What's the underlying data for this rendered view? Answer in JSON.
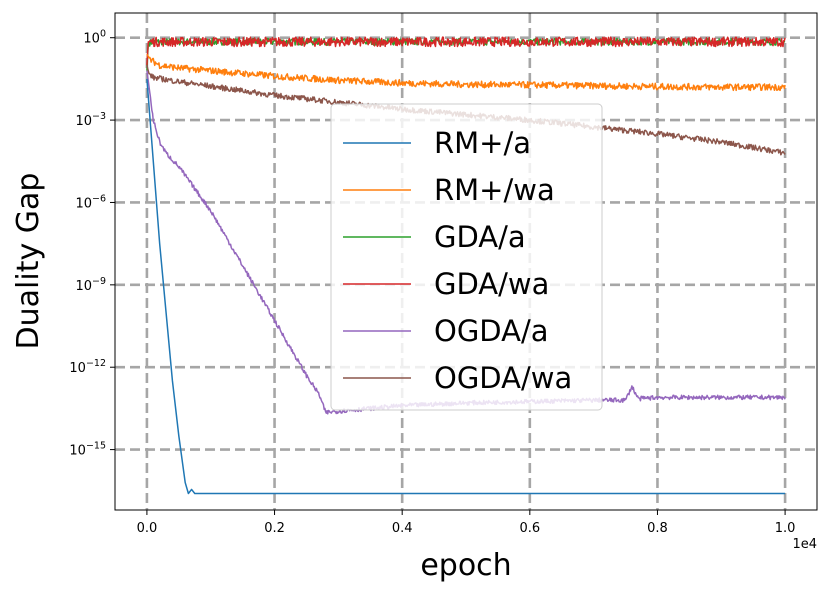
{
  "chart_data": {
    "type": "line",
    "title": "",
    "xlabel": "epoch",
    "ylabel": "Duality Gap",
    "x_offset_label": "1e4",
    "xlim": [
      -0.05,
      1.05
    ],
    "ylim_log10": [
      -17.2,
      0.9
    ],
    "x_ticks": [
      {
        "value": 0.0,
        "label": "0.0"
      },
      {
        "value": 0.2,
        "label": "0.2"
      },
      {
        "value": 0.4,
        "label": "0.4"
      },
      {
        "value": 0.6,
        "label": "0.6"
      },
      {
        "value": 0.8,
        "label": "0.8"
      },
      {
        "value": 1.0,
        "label": "1.0"
      }
    ],
    "y_ticks": [
      {
        "exp": 0,
        "base": "10",
        "sup": "0"
      },
      {
        "exp": -3,
        "base": "10",
        "sup": "−3"
      },
      {
        "exp": -6,
        "base": "10",
        "sup": "−6"
      },
      {
        "exp": -9,
        "base": "10",
        "sup": "−9"
      },
      {
        "exp": -12,
        "base": "10",
        "sup": "−12"
      },
      {
        "exp": -15,
        "base": "10",
        "sup": "−15"
      }
    ],
    "grid": true,
    "legend_position": "center",
    "series": [
      {
        "name": "RM+/a",
        "color": "#1f77b4",
        "x": [
          0.0,
          0.01,
          0.02,
          0.03,
          0.04,
          0.05,
          0.06,
          0.065,
          0.07,
          0.075,
          0.08,
          0.1,
          0.2,
          0.4,
          0.6,
          0.8,
          1.0
        ],
        "y": [
          -1.5,
          -4.5,
          -7.5,
          -10.0,
          -12.5,
          -14.5,
          -16.2,
          -16.6,
          -16.45,
          -16.6,
          -16.6,
          -16.6,
          -16.6,
          -16.6,
          -16.6,
          -16.6,
          -16.6
        ],
        "noise": 0
      },
      {
        "name": "RM+/wa",
        "color": "#ff7f0e",
        "x": [
          0.0,
          0.005,
          0.02,
          0.05,
          0.1,
          0.2,
          0.3,
          0.4,
          0.5,
          0.6,
          0.7,
          0.8,
          0.9,
          1.0
        ],
        "y": [
          -0.6,
          -0.8,
          -1.0,
          -1.1,
          -1.2,
          -1.4,
          -1.55,
          -1.65,
          -1.7,
          -1.72,
          -1.75,
          -1.78,
          -1.8,
          -1.8
        ],
        "noise": 0.12
      },
      {
        "name": "GDA/a",
        "color": "#2ca02c",
        "x": [
          0.0,
          0.002,
          0.01,
          0.5,
          1.0
        ],
        "y": [
          -1.2,
          -0.2,
          -0.15,
          -0.15,
          -0.15
        ],
        "noise": 0.12
      },
      {
        "name": "GDA/wa",
        "color": "#d62728",
        "x": [
          0.0,
          0.002,
          0.01,
          0.5,
          1.0
        ],
        "y": [
          -1.0,
          -0.15,
          -0.15,
          -0.15,
          -0.15
        ],
        "noise": 0.17
      },
      {
        "name": "OGDA/a",
        "color": "#9467bd",
        "x": [
          0.0,
          0.01,
          0.02,
          0.03,
          0.05,
          0.1,
          0.2,
          0.25,
          0.27,
          0.28,
          0.3,
          0.4,
          0.5,
          0.6,
          0.7,
          0.75,
          0.76,
          0.77,
          0.8,
          1.0
        ],
        "y": [
          -1.2,
          -3.0,
          -3.8,
          -4.2,
          -4.7,
          -6.3,
          -10.3,
          -12.3,
          -13.0,
          -13.65,
          -13.6,
          -13.4,
          -13.3,
          -13.25,
          -13.2,
          -13.2,
          -12.7,
          -13.15,
          -13.1,
          -13.1
        ],
        "noise": 0.08
      },
      {
        "name": "OGDA/wa",
        "color": "#8c564b",
        "x": [
          0.0,
          0.003,
          0.01,
          0.05,
          0.2,
          0.4,
          0.6,
          0.8,
          0.9,
          1.0
        ],
        "y": [
          -1.0,
          -1.3,
          -1.45,
          -1.6,
          -2.1,
          -2.6,
          -3.0,
          -3.5,
          -3.8,
          -4.2
        ],
        "noise": 0.1
      }
    ]
  }
}
